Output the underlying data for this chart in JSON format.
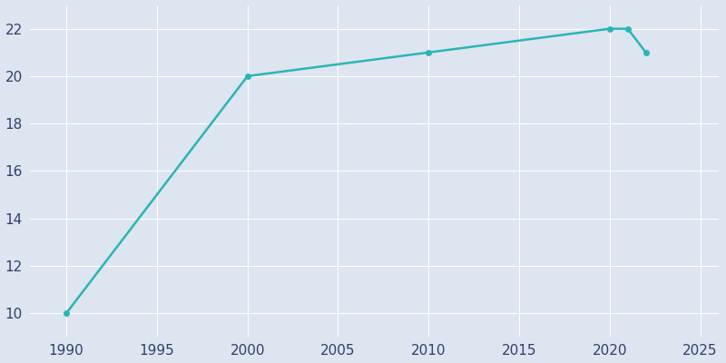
{
  "years": [
    1990,
    2000,
    2010,
    2020,
    2021,
    2022
  ],
  "values": [
    10,
    20,
    21,
    22,
    22,
    21
  ],
  "line_color": "#2ab5b5",
  "marker": "o",
  "marker_size": 4,
  "line_width": 1.8,
  "background_color": "#dde5f0",
  "plot_background_color": "#dde5f0",
  "grid_color": "#ffffff",
  "tick_color": "#2e3f6e",
  "xlim": [
    1988,
    2026
  ],
  "ylim": [
    9,
    23
  ],
  "xticks": [
    1990,
    1995,
    2000,
    2005,
    2010,
    2015,
    2020,
    2025
  ],
  "yticks": [
    10,
    12,
    14,
    16,
    18,
    20,
    22
  ]
}
